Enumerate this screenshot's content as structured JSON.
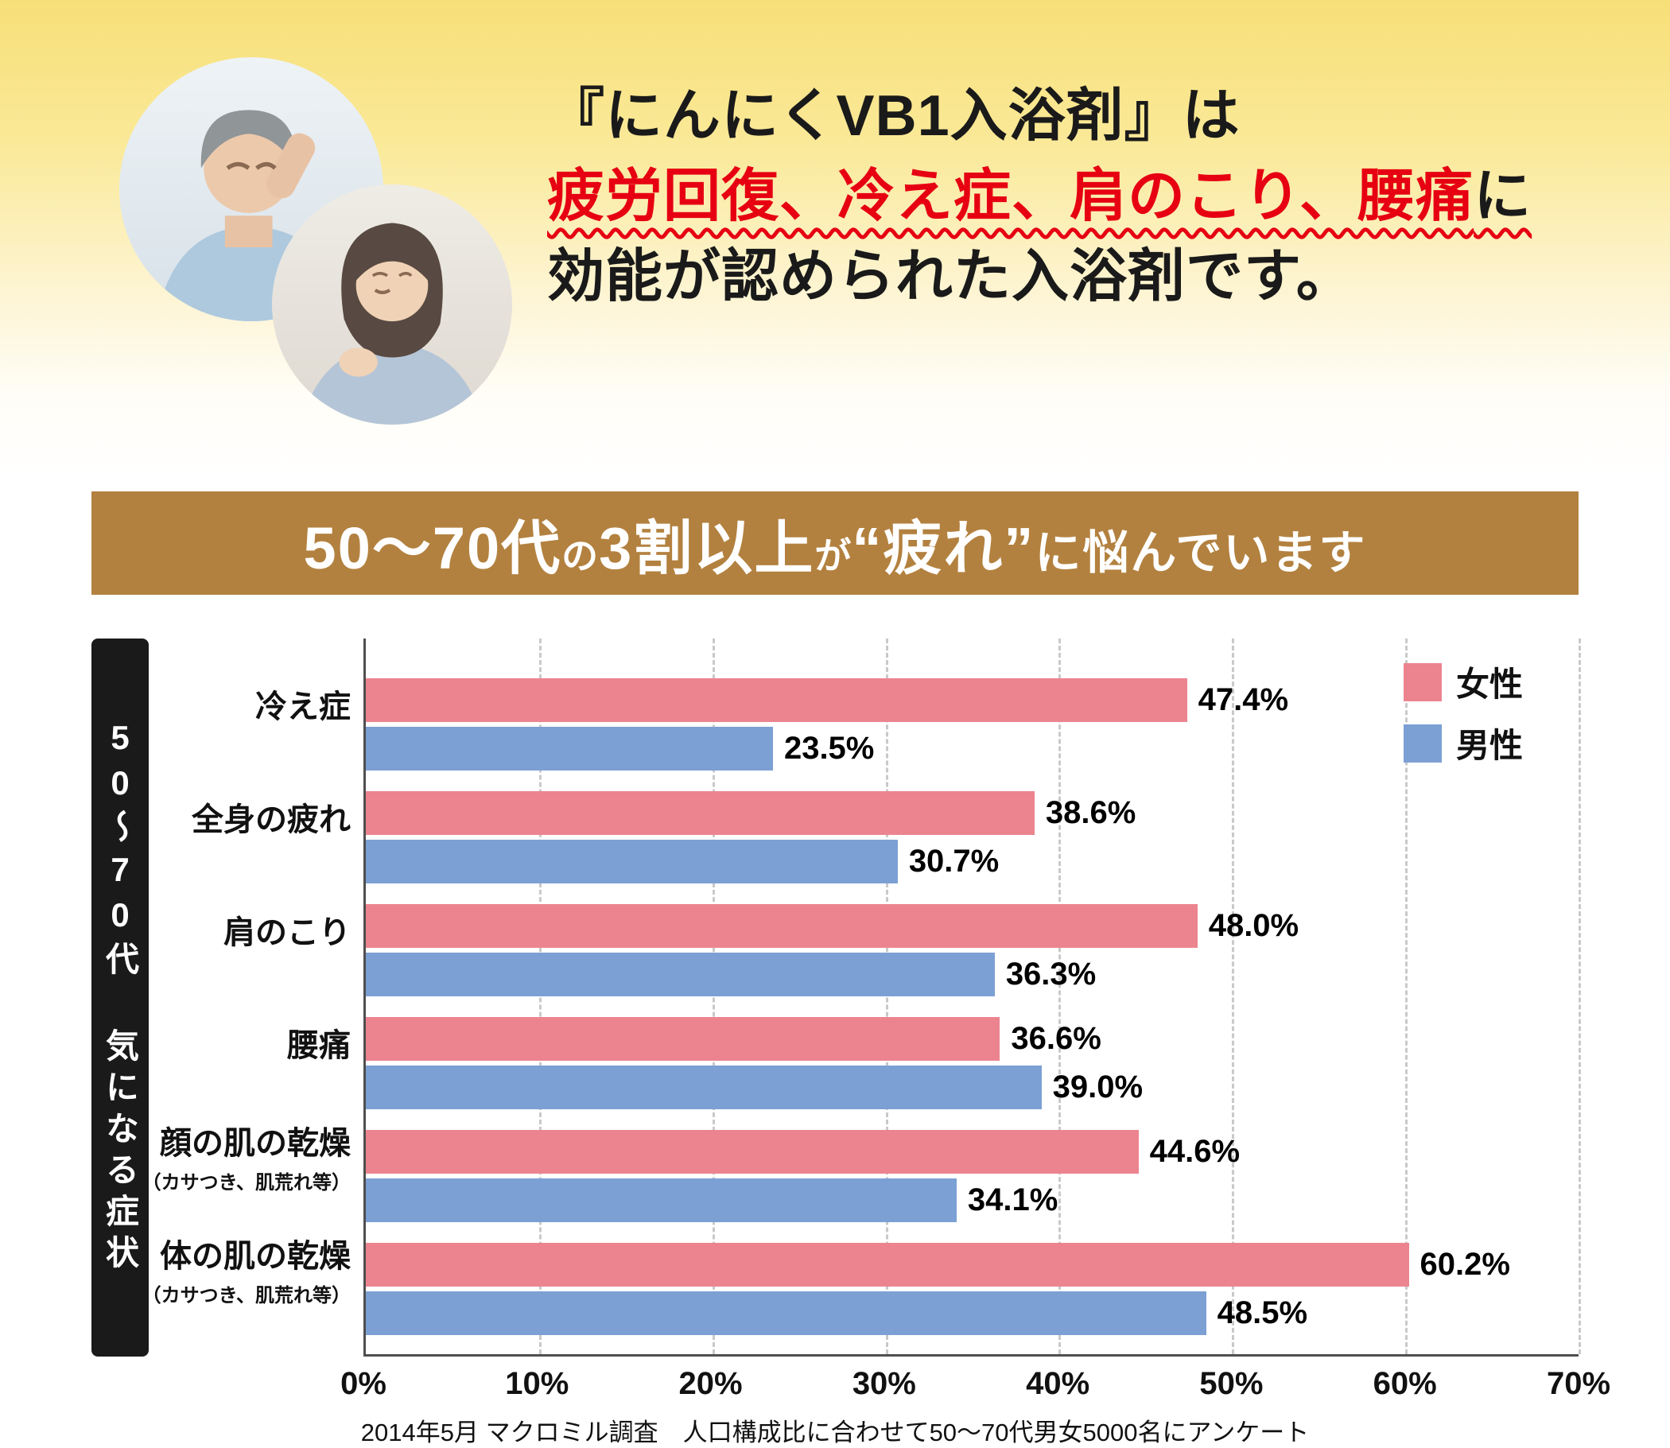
{
  "hero": {
    "title_line1": "『にんにくVB1入浴剤』は",
    "highlight": "疲労回復、冷え症、肩のこり、腰痛",
    "highlight_suffix": "に",
    "title_line3": "効能が認められた入浴剤です。",
    "photo1_name": "elderly-man-headache-photo",
    "photo2_name": "woman-shoulder-pain-photo"
  },
  "banner": {
    "segments": [
      {
        "text": "50〜70代",
        "size": "lg"
      },
      {
        "text": "の",
        "size": "sm"
      },
      {
        "text": "3割以上",
        "size": "lg"
      },
      {
        "text": "が",
        "size": "sm"
      },
      {
        "text": "“疲れ”",
        "size": "lg"
      },
      {
        "text": "に悩んでいます",
        "size": "md"
      }
    ]
  },
  "chart_data": {
    "type": "bar",
    "orientation": "horizontal",
    "side_label": "50〜70代 気になる症状",
    "categories": [
      "冷え症",
      "全身の疲れ",
      "肩のこり",
      "腰痛",
      "顔の肌の乾燥",
      "体の肌の乾燥"
    ],
    "category_subs": [
      "",
      "",
      "",
      "",
      "（カサつき、肌荒れ等）",
      "（カサつき、肌荒れ等）"
    ],
    "series": [
      {
        "name": "女性",
        "color": "#ec8490",
        "values": [
          47.4,
          38.6,
          48.0,
          36.6,
          44.6,
          60.2
        ]
      },
      {
        "name": "男性",
        "color": "#7ca0d4",
        "values": [
          23.5,
          30.7,
          36.3,
          39.0,
          34.1,
          48.5
        ]
      }
    ],
    "xlim": [
      0,
      70
    ],
    "x_ticks": [
      "0%",
      "10%",
      "20%",
      "30%",
      "40%",
      "50%",
      "60%",
      "70%"
    ],
    "value_suffix": "%",
    "grid": "vertical-dashed",
    "legend_position": "top-right",
    "source": "2014年5月 マクロミル調査　人口構成比に合わせて50〜70代男女5000名にアンケート"
  },
  "colors": {
    "banner_bg": "#b3813f",
    "highlight_red": "#e60012",
    "female_pink": "#ec8490",
    "male_blue": "#7ca0d4",
    "side_label_bg": "#1a1a1a"
  }
}
